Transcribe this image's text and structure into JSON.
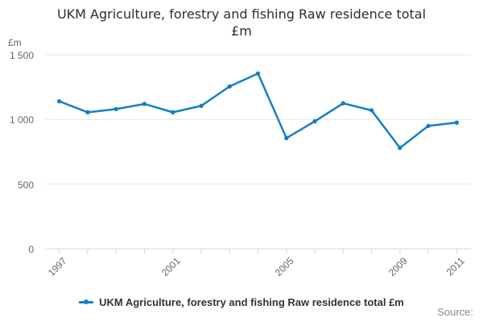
{
  "header": {
    "line1": "UKM Agriculture, forestry and fishing Raw residence total",
    "line2": "£m"
  },
  "footer": {
    "source_label": "Source:"
  },
  "chart_data": {
    "type": "line",
    "title": "UKM Agriculture, forestry and fishing Raw residence total £m",
    "unit_label": "£m",
    "categories": [
      1997,
      1998,
      1999,
      2000,
      2001,
      2002,
      2003,
      2004,
      2005,
      2006,
      2007,
      2008,
      2009,
      2010,
      2011
    ],
    "series": [
      {
        "name": "UKM Agriculture, forestry and fishing Raw residence total £m",
        "values": [
          1140,
          1055,
          1080,
          1120,
          1055,
          1105,
          1255,
          1355,
          855,
          985,
          1125,
          1070,
          780,
          950,
          975
        ]
      }
    ],
    "ylim": [
      0,
      1500
    ],
    "yticks": [
      {
        "value": 0,
        "label": "0"
      },
      {
        "value": 500,
        "label": "500"
      },
      {
        "value": 1000,
        "label": "1 000"
      },
      {
        "value": 1500,
        "label": "1 500"
      }
    ],
    "x_labels": [
      {
        "index": 0,
        "label": "1997"
      },
      {
        "index": 4,
        "label": "2001"
      },
      {
        "index": 8,
        "label": "2005"
      },
      {
        "index": 12,
        "label": "2009"
      },
      {
        "index": 14,
        "label": "2011"
      }
    ],
    "grid": "horizontal",
    "legend_position": "bottom",
    "colors": {
      "series": "#1380c4",
      "gridline": "#e6e6e6",
      "axis": "#ccd6eb",
      "tick_label": "#666666",
      "title": "#2e2e2e",
      "legend_text": "#333333",
      "source_text": "#8a8a8a"
    }
  }
}
